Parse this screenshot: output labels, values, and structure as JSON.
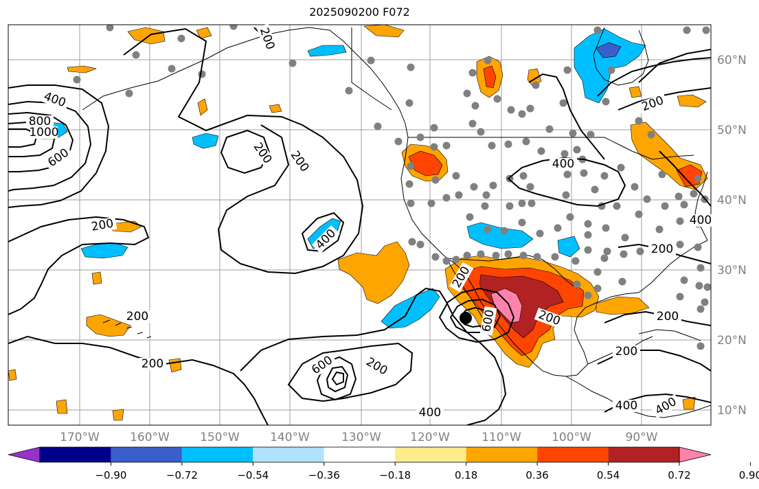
{
  "title": "2025090200 F072",
  "longitude_labels": [
    "170°W",
    "160°W",
    "150°W",
    "140°W",
    "130°W",
    "120°W",
    "110°W",
    "100°W",
    "90°W"
  ],
  "latitude_labels": [
    "60°N",
    "50°N",
    "40°N",
    "30°N",
    "20°N",
    "10°N"
  ],
  "colorbar": {
    "colors": [
      "#9932cc",
      "#00008b",
      "#3a5fcd",
      "#00bfff",
      "#b0e2ff",
      "#ffffff",
      "#ffec8b",
      "#ffa500",
      "#ff4500",
      "#b22222",
      "#ff82ab"
    ],
    "tick_labels": [
      "−0.90",
      "−0.72",
      "−0.54",
      "−0.36",
      "−0.18",
      "0.18",
      "0.36",
      "0.54",
      "0.72",
      "0.90"
    ]
  },
  "contour_labels": [
    {
      "text": "200",
      "kind": "pacific-north"
    },
    {
      "text": "200",
      "kind": "gulf-alaska-a"
    },
    {
      "text": "200",
      "kind": "gulf-alaska-b"
    },
    {
      "text": "400",
      "kind": "west-low"
    },
    {
      "text": "800",
      "kind": "west-low"
    },
    {
      "text": "1000",
      "kind": "west-low"
    },
    {
      "text": "600",
      "kind": "west-low"
    },
    {
      "text": "200",
      "kind": "mid-pacific"
    },
    {
      "text": "400",
      "kind": "mid-pacific"
    },
    {
      "text": "200",
      "kind": "hawaii"
    },
    {
      "text": "200",
      "kind": "hawaii-south"
    },
    {
      "text": "600",
      "kind": "subtropic-low"
    },
    {
      "text": "200",
      "kind": "subtropic-low"
    },
    {
      "text": "400",
      "kind": "south"
    },
    {
      "text": "200",
      "kind": "mexico"
    },
    {
      "text": "600",
      "kind": "mexico"
    },
    {
      "text": "200",
      "kind": "mexico"
    },
    {
      "text": "400",
      "kind": "plains"
    },
    {
      "text": "200",
      "kind": "east"
    },
    {
      "text": "200",
      "kind": "east"
    },
    {
      "text": "400",
      "kind": "east"
    },
    {
      "text": "200",
      "kind": "gulf"
    },
    {
      "text": "200",
      "kind": "caribbean"
    },
    {
      "text": "400",
      "kind": "caribbean"
    },
    {
      "text": "400",
      "kind": "caribbean"
    }
  ]
}
